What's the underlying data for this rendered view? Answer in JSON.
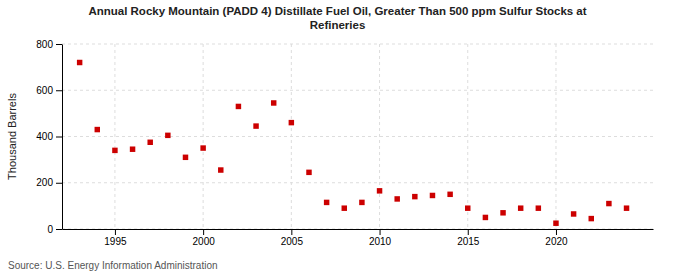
{
  "chart_data": {
    "type": "scatter",
    "title": "Annual Rocky Mountain (PADD 4) Distillate Fuel Oil, Greater Than 500 ppm Sulfur Stocks at\nRefineries",
    "ylabel": "Thousand Barrels",
    "annotations": [
      "Source: U.S. Energy Information Administration"
    ],
    "x": [
      1993,
      1994,
      1995,
      1996,
      1997,
      1998,
      1999,
      2000,
      2001,
      2002,
      2003,
      2004,
      2005,
      2006,
      2007,
      2008,
      2009,
      2010,
      2011,
      2012,
      2013,
      2014,
      2015,
      2016,
      2017,
      2018,
      2019,
      2020,
      2021,
      2022,
      2023,
      2024
    ],
    "values": [
      720,
      430,
      340,
      345,
      375,
      405,
      310,
      350,
      255,
      530,
      445,
      545,
      460,
      245,
      115,
      90,
      115,
      165,
      130,
      140,
      145,
      150,
      90,
      50,
      70,
      90,
      90,
      25,
      65,
      45,
      110,
      90
    ],
    "color": "#cc0000",
    "marker": "square",
    "xlim": [
      1992.0,
      2025.5
    ],
    "xticks": [
      1995,
      2000,
      2005,
      2010,
      2015,
      2020
    ],
    "ylim": [
      0,
      800
    ],
    "yticks": [
      0,
      200,
      400,
      600,
      800
    ],
    "grid": true
  }
}
